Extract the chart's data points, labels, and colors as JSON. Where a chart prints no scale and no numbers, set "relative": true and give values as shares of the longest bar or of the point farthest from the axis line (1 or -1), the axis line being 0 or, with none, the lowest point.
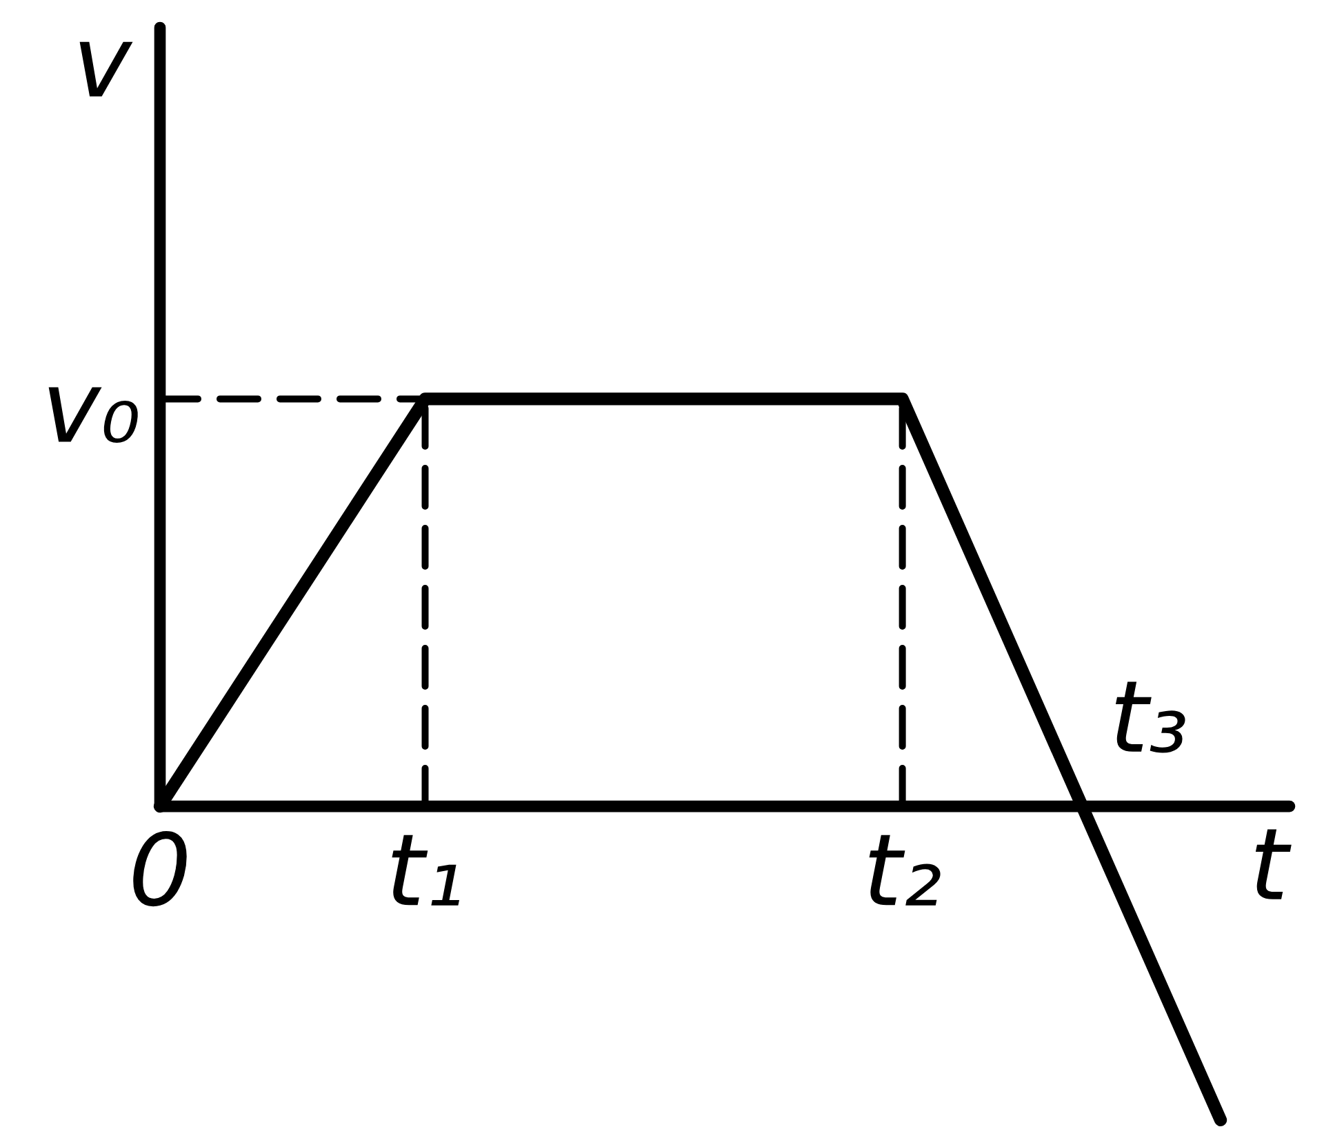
{
  "chart_data": {
    "type": "line",
    "relative": true,
    "xlabel": "t",
    "ylabel": "v",
    "color": "#000000",
    "categories": [
      "0",
      null,
      null,
      null,
      null,
      "t₁",
      null,
      null,
      null,
      null,
      null,
      null,
      null,
      null,
      "t₂",
      null,
      null,
      null,
      null,
      null,
      null,
      null
    ],
    "values": [
      0,
      0.2,
      0.4,
      0.6,
      0.8,
      1,
      1,
      1,
      1,
      1,
      1,
      1,
      1,
      1,
      1,
      0.705,
      0.41,
      0.115,
      -0.18,
      -0.475,
      -0.77,
      null
    ],
    "ref_lines": [
      {
        "axis": "y",
        "value": 1,
        "label": "v₀",
        "line_style": "dashed",
        "color": "#000000"
      },
      {
        "axis": "x",
        "value": "t₁",
        "line_style": "dashed",
        "color": "#000000"
      },
      {
        "axis": "x",
        "value": "t₂",
        "line_style": "dashed",
        "color": "#000000"
      }
    ],
    "annotations": [
      "t₃"
    ]
  }
}
